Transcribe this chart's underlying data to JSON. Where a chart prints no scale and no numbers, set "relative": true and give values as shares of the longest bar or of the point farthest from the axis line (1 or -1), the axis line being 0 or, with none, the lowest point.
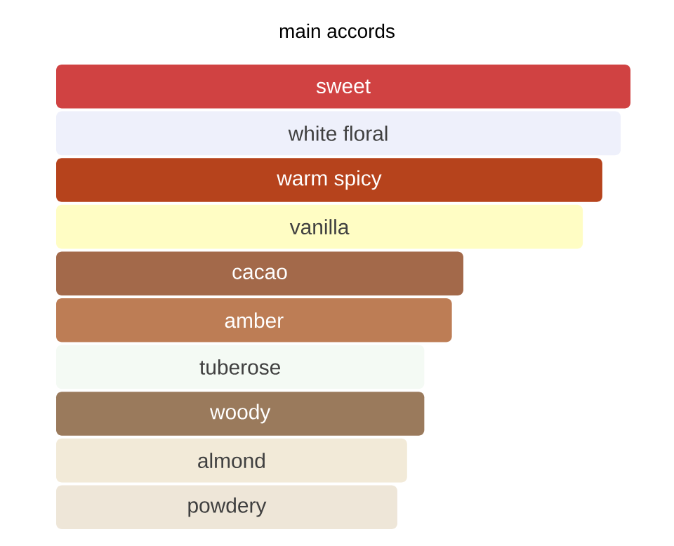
{
  "chart_data": {
    "type": "bar",
    "orientation": "horizontal",
    "relative": true,
    "title": "main accords",
    "categories": [
      "sweet",
      "white floral",
      "warm spicy",
      "vanilla",
      "cacao",
      "amber",
      "tuberose",
      "woody",
      "almond",
      "powdery"
    ],
    "values": [
      1,
      0.983,
      0.951,
      0.917,
      0.709,
      0.689,
      0.641,
      0.641,
      0.611,
      0.594
    ],
    "colors": [
      "#d04242",
      "#eef0fb",
      "#b6431c",
      "#fffdc4",
      "#a3694a",
      "#bd7d55",
      "#f4faf4",
      "#9a7a5c",
      "#f2ead8",
      "#eee6d8"
    ]
  }
}
